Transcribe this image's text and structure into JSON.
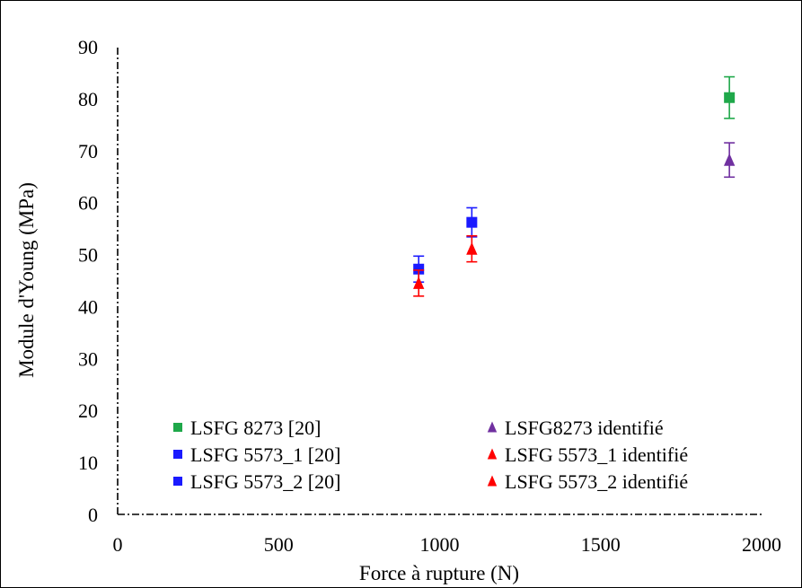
{
  "chart_data": {
    "type": "scatter",
    "xlabel": "Force à rupture (N)",
    "ylabel": "Module d'Young (MPa)",
    "xlim": [
      0,
      2000
    ],
    "ylim": [
      0,
      90
    ],
    "xticks": [
      0,
      500,
      1000,
      1500,
      2000
    ],
    "yticks": [
      0,
      10,
      20,
      30,
      40,
      50,
      60,
      70,
      80,
      90
    ],
    "grid": false,
    "legend_position": "bottom-center",
    "series": [
      {
        "name": "LSFG 8273 [20]",
        "marker": "square",
        "color": "#1fa84a",
        "points": [
          {
            "x": 1900,
            "y": 80.2,
            "err": 4.0
          }
        ]
      },
      {
        "name": "LSFG 5573_1 [20]",
        "marker": "square",
        "color": "#1a1aff",
        "points": [
          {
            "x": 1100,
            "y": 56.2,
            "err": 2.8
          }
        ]
      },
      {
        "name": "LSFG 5573_2 [20]",
        "marker": "square",
        "color": "#1a1aff",
        "points": [
          {
            "x": 935,
            "y": 47.2,
            "err": 2.5
          }
        ]
      },
      {
        "name": "LSFG8273 identifié",
        "marker": "triangle",
        "color": "#7030a0",
        "points": [
          {
            "x": 1900,
            "y": 68.2,
            "err": 3.3
          }
        ]
      },
      {
        "name": "LSFG 5573_1 identifié",
        "marker": "triangle",
        "color": "#ff0000",
        "points": [
          {
            "x": 1100,
            "y": 51.1,
            "err": 2.5
          }
        ]
      },
      {
        "name": "LSFG 5573_2 identifié",
        "marker": "triangle",
        "color": "#ff0000",
        "points": [
          {
            "x": 935,
            "y": 44.5,
            "err": 2.5
          }
        ]
      }
    ]
  }
}
